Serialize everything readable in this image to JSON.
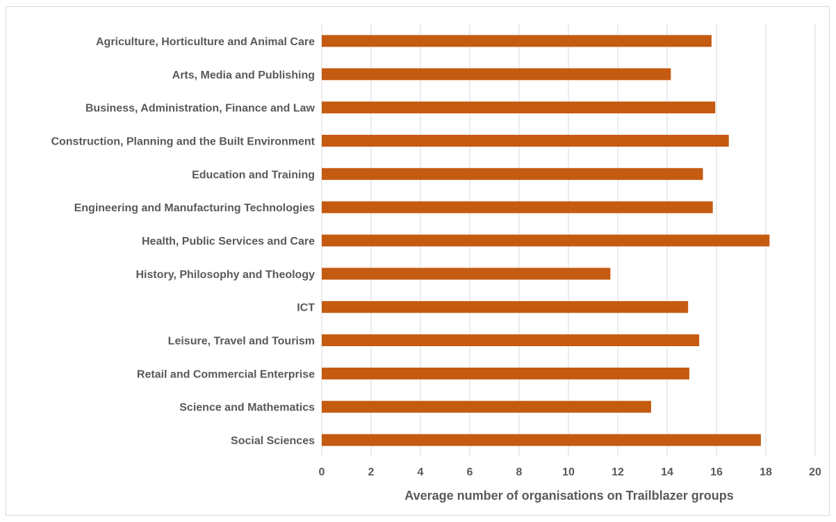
{
  "chart_data": {
    "type": "bar",
    "orientation": "horizontal",
    "categories": [
      "Agriculture, Horticulture and Animal Care",
      "Arts, Media and Publishing",
      "Business, Administration, Finance and Law",
      "Construction, Planning and the Built Environment",
      "Education and Training",
      "Engineering and Manufacturing Technologies",
      "Health, Public Services and Care",
      "History, Philosophy and Theology",
      "ICT",
      "Leisure, Travel and Tourism",
      "Retail and Commercial Enterprise",
      "Science and Mathematics",
      "Social Sciences"
    ],
    "values": [
      15.8,
      14.15,
      15.95,
      16.5,
      15.45,
      15.85,
      18.15,
      11.7,
      14.85,
      15.3,
      14.9,
      13.35,
      17.8
    ],
    "xlabel": "Average number of organisations on Trailblazer groups",
    "ylabel": "",
    "xlim": [
      0,
      20
    ],
    "xticks": [
      "0",
      "2",
      "4",
      "6",
      "8",
      "10",
      "12",
      "14",
      "16",
      "18",
      "20"
    ],
    "grid": true,
    "legend": "none",
    "bar_color": "#c55a11"
  }
}
